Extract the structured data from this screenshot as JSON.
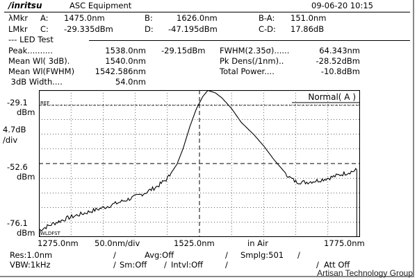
{
  "header": {
    "brand": "/inritsu",
    "title": "ASC Equipment",
    "datetime": "09-06-20 10:15"
  },
  "markers": {
    "row1": {
      "prefix": "λMkr",
      "a_label": "A:",
      "a_value": "1475.0nm",
      "b_label": "B:",
      "b_value": "1626.0nm",
      "diff_label": "B-A:",
      "diff_value": "151.0nm"
    },
    "row2": {
      "prefix": "LMkr",
      "c_label": "C:",
      "c_value": "-29.335dBm",
      "d_label": "D:",
      "d_value": "-47.195dBm",
      "diff_label": "C-D:",
      "diff_value": "17.86dB"
    }
  },
  "led_test": {
    "title": "--- LED Test",
    "left": [
      {
        "label": "Peak..........",
        "value": "1538.0nm",
        "extra": "-29.15dBm"
      },
      {
        "label": "Mean Wl( 3dB).",
        "value": "1540.0nm",
        "extra": ""
      },
      {
        "label": "Mean Wl(FWHM)",
        "value": "1542.586nm",
        "extra": ""
      },
      {
        "label": " 3dB Width....",
        "value": "54.0nm",
        "extra": ""
      }
    ],
    "right": [
      {
        "label": "FWHM(2.35σ)......",
        "value": "64.343nm"
      },
      {
        "label": "Pk Dens(/1nm)..",
        "value": "-28.52dBm"
      },
      {
        "label": "Total Power....",
        "value": "-10.8dBm"
      }
    ]
  },
  "plot": {
    "mode_label": "Normal( A )",
    "ref_label": "REF",
    "wldfst_label": "WLDFST",
    "y_labels": {
      "top": "-29.1",
      "top_unit": "dBm",
      "scale": "4.7dB",
      "scale_unit": "/div",
      "mid": "-52.6",
      "mid_unit": "dBm",
      "bottom": "-76.1",
      "bottom_unit": "dBm"
    },
    "x_labels": {
      "start": "1275.0nm",
      "per_div": "50.0nm/div",
      "center": "1525.0nm",
      "medium": "in Air",
      "stop": "1775.0nm"
    }
  },
  "chart_data": {
    "type": "line",
    "title": "",
    "xlabel": "",
    "ylabel": "",
    "xlim": [
      1275.0,
      1775.0
    ],
    "ylim": [
      -76.1,
      -29.1
    ],
    "grid": true,
    "series": [
      {
        "x": [
          1275,
          1290,
          1300,
          1320,
          1340,
          1360,
          1380,
          1400,
          1420,
          1440,
          1460,
          1475,
          1490,
          1500,
          1510,
          1520,
          1530,
          1538,
          1550,
          1560,
          1575,
          1590,
          1610,
          1626,
          1640,
          1655,
          1665,
          1675,
          1690,
          1710,
          1730,
          1750,
          1765,
          1770
        ],
        "y": [
          -74.0,
          -72.5,
          -71.6,
          -70.0,
          -68.8,
          -67.6,
          -66.4,
          -65.0,
          -63.6,
          -62.0,
          -59.8,
          -57.4,
          -52.8,
          -47.5,
          -40.8,
          -35.2,
          -31.2,
          -29.2,
          -30.0,
          -31.6,
          -35.0,
          -39.4,
          -43.4,
          -47.2,
          -51.1,
          -54.7,
          -57.0,
          -58.4,
          -58.6,
          -58.0,
          -57.0,
          -55.8,
          -55.0,
          -54.6
        ]
      }
    ]
  },
  "settings": {
    "res": "Res:1.0nm",
    "avg": "Avg:Off",
    "smplg": "Smplg:501",
    "vbw": "VBW:1kHz",
    "sm": "Sm:Off",
    "intvl": "Intvl:Off",
    "att": "Att Off"
  },
  "watermark": "Artisan Technology Group"
}
